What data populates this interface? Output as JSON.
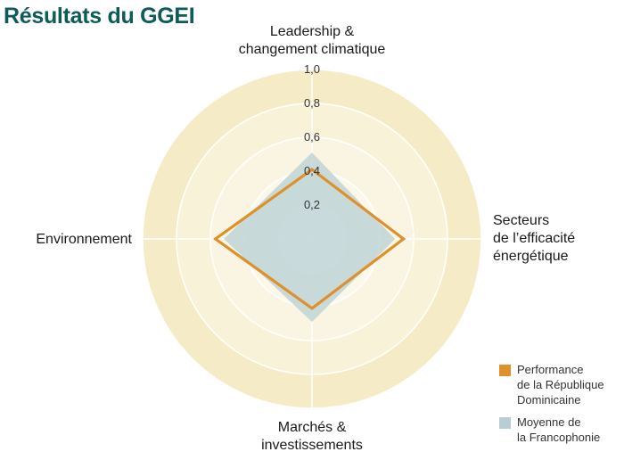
{
  "title": "Résultats du GGEI",
  "chart_data": {
    "type": "radar",
    "axes": [
      "Leadership & changement climatique",
      "Secteurs de l’efficacité énergétique",
      "Marchés & investissements",
      "Environnement"
    ],
    "axis_label_lines": [
      [
        "Leadership &",
        "changement climatique"
      ],
      [
        "Secteurs",
        "de l’efficacité",
        "énergétique"
      ],
      [
        "Marchés &",
        "investissements"
      ],
      [
        "Environnement"
      ]
    ],
    "range": [
      0,
      1.0
    ],
    "ticks": [
      "0,2",
      "0,4",
      "0,6",
      "0,8",
      "1,0"
    ],
    "tick_values": [
      0.2,
      0.4,
      0.6,
      0.8,
      1.0
    ],
    "series": [
      {
        "name": "Performance de la République Dominicaine",
        "legend_lines": [
          "Performance",
          "de la République",
          "Dominicaine"
        ],
        "values": [
          0.41,
          0.54,
          0.41,
          0.57
        ],
        "color": "#e0902a"
      },
      {
        "name": "Moyenne de la Francophonie",
        "legend_lines": [
          "Moyenne de",
          "la Francophonie"
        ],
        "values": [
          0.51,
          0.49,
          0.49,
          0.52
        ],
        "color": "#b7cfd4"
      }
    ]
  }
}
